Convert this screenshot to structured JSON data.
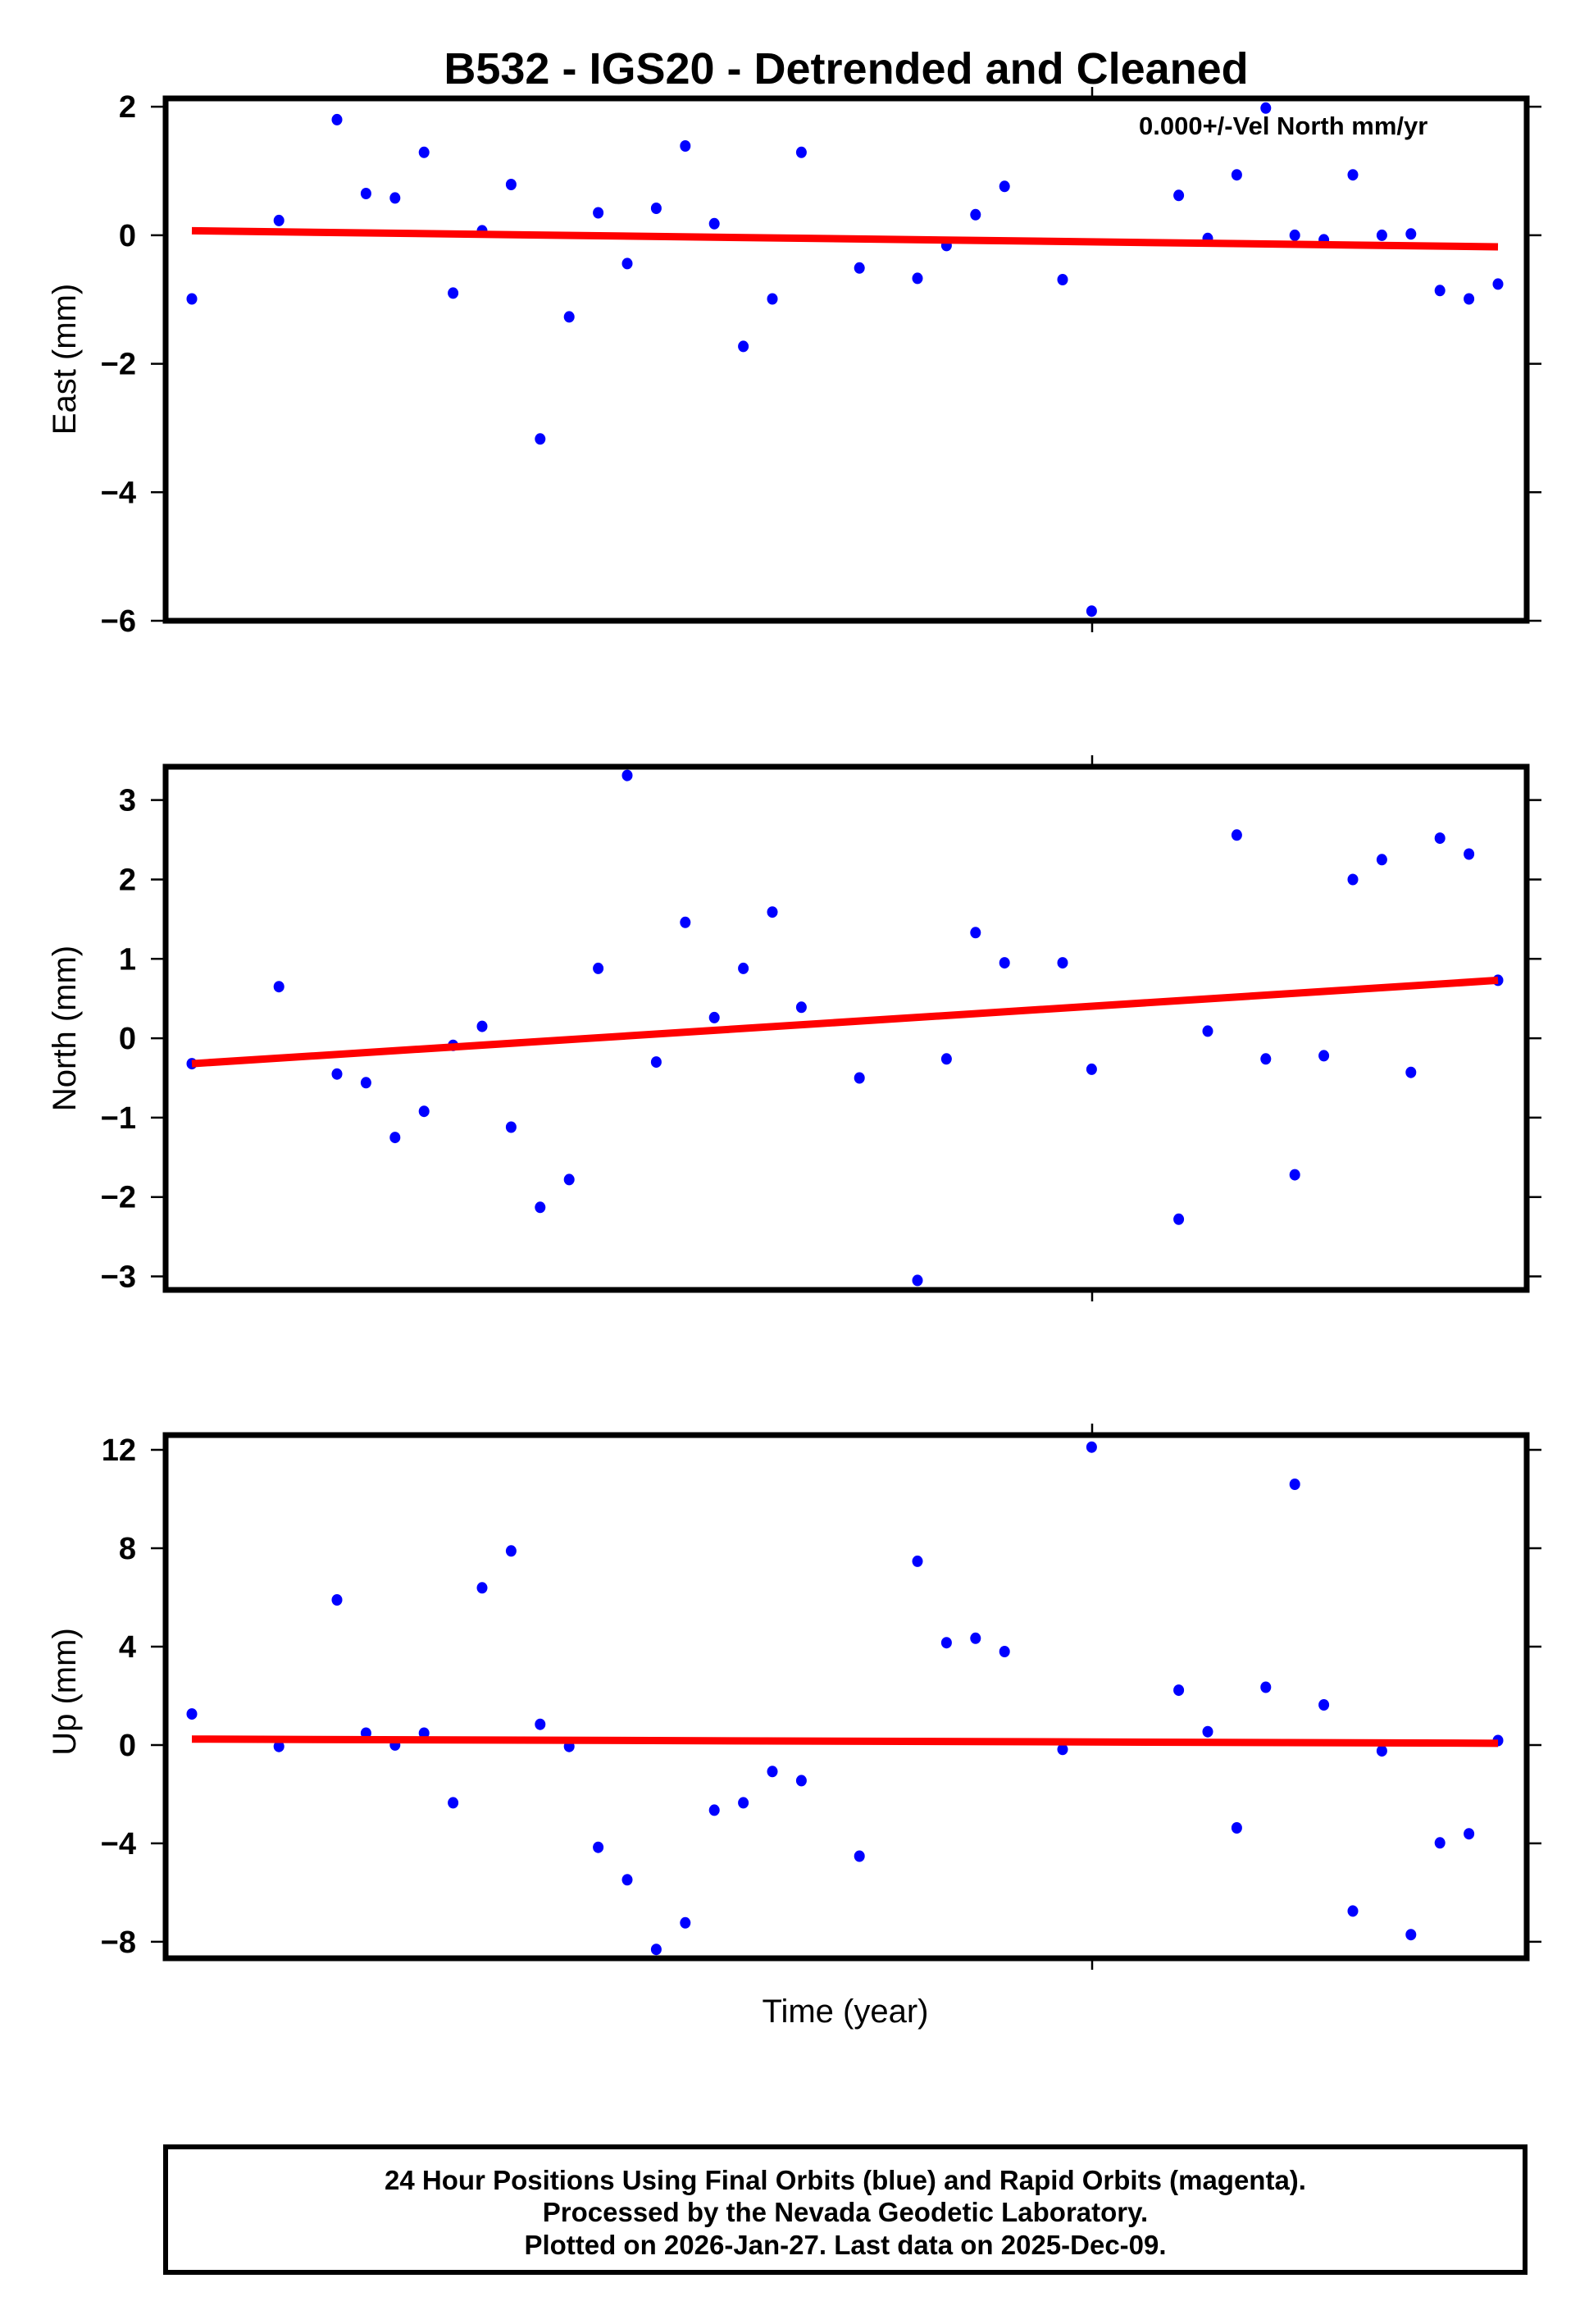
{
  "title": "B532 - IGS20 - Detrended and Cleaned",
  "velocity_annotation": "0.000+/-Vel North mm/yr",
  "xlabel": "Time (year)",
  "footer": {
    "line1": "24 Hour Positions Using Final Orbits (blue) and Rapid Orbits (magenta).",
    "line2": "Processed by the Nevada Geodetic Laboratory.",
    "line3": "Plotted on 2026-Jan-27. Last data on 2025-Dec-09."
  },
  "colors": {
    "final_orbits": "#0000ff",
    "rapid_orbits": "#ff00ff",
    "trend": "#ff0000",
    "frame": "#000000"
  },
  "chart_data": [
    {
      "type": "scatter",
      "name": "East",
      "title": "B532 - IGS20 - Detrended and Cleaned",
      "xlabel": "Time (year)",
      "ylabel": "East (mm)",
      "ylim": [
        -6,
        2.13
      ],
      "yticks": [
        2,
        0,
        -2,
        -4,
        -6
      ],
      "ytick_labels": [
        "2",
        "0",
        "−2",
        "−4",
        "−6"
      ],
      "grid": false,
      "annotation": "0.000+/-Vel North mm/yr",
      "x_index": [
        0,
        3,
        5,
        6,
        7,
        8,
        9,
        10,
        11,
        12,
        13,
        14,
        15,
        16,
        17,
        18,
        19,
        20,
        21,
        23,
        25,
        26,
        27,
        28,
        30,
        31,
        34,
        35,
        36,
        37,
        38,
        39,
        40,
        41,
        42,
        43,
        44,
        45
      ],
      "values": [
        -0.99,
        0.23,
        1.8,
        0.65,
        0.58,
        1.29,
        -0.9,
        0.07,
        0.79,
        -3.17,
        -1.27,
        0.35,
        -0.44,
        0.42,
        1.39,
        0.18,
        -1.73,
        -0.99,
        1.29,
        -0.51,
        -0.67,
        -0.16,
        0.32,
        0.76,
        -0.69,
        -5.85,
        0.62,
        -0.05,
        0.94,
        1.98,
        0.0,
        -0.07,
        0.94,
        0.0,
        0.02,
        -0.86,
        -0.99,
        -0.76
      ],
      "trend": {
        "start": 0.07,
        "end": -0.18
      }
    },
    {
      "type": "scatter",
      "name": "North",
      "xlabel": "Time (year)",
      "ylabel": "North (mm)",
      "ylim": [
        -3.17,
        3.42
      ],
      "yticks": [
        3,
        2,
        1,
        0,
        -1,
        -2,
        -3
      ],
      "ytick_labels": [
        "3",
        "2",
        "1",
        "0",
        "−1",
        "−2",
        "−3"
      ],
      "grid": false,
      "x_index": [
        0,
        3,
        5,
        6,
        7,
        8,
        9,
        10,
        11,
        12,
        13,
        14,
        15,
        16,
        17,
        18,
        19,
        20,
        21,
        23,
        25,
        26,
        27,
        28,
        30,
        31,
        34,
        35,
        36,
        37,
        38,
        39,
        40,
        41,
        42,
        43,
        44,
        45
      ],
      "values": [
        -0.32,
        0.65,
        -0.45,
        -0.56,
        -1.25,
        -0.92,
        -0.09,
        0.15,
        -1.12,
        -2.13,
        -1.78,
        0.88,
        3.31,
        -0.3,
        1.46,
        0.26,
        0.88,
        1.59,
        0.39,
        -0.5,
        -3.05,
        -0.26,
        1.33,
        0.95,
        0.95,
        -0.39,
        -2.28,
        0.09,
        2.56,
        -0.26,
        -1.72,
        -0.22,
        2.0,
        2.25,
        -0.43,
        2.52,
        2.32,
        0.73
      ],
      "trend": {
        "start": -0.32,
        "end": 0.73
      }
    },
    {
      "type": "scatter",
      "name": "Up",
      "xlabel": "Time (year)",
      "ylabel": "Up (mm)",
      "ylim": [
        -8.67,
        12.6
      ],
      "yticks": [
        12,
        8,
        4,
        0,
        -4,
        -8
      ],
      "ytick_labels": [
        "12",
        "8",
        "4",
        "0",
        "−4",
        "−8"
      ],
      "grid": false,
      "x_index": [
        0,
        3,
        5,
        6,
        7,
        8,
        9,
        10,
        11,
        12,
        13,
        14,
        15,
        16,
        17,
        18,
        19,
        20,
        21,
        23,
        25,
        26,
        27,
        28,
        30,
        31,
        34,
        35,
        36,
        37,
        38,
        39,
        40,
        41,
        42,
        43,
        44,
        45
      ],
      "values": [
        1.26,
        -0.06,
        5.9,
        0.48,
        0.0,
        0.48,
        -2.35,
        6.39,
        7.89,
        0.84,
        -0.06,
        -4.16,
        -5.48,
        -8.31,
        -7.23,
        -2.65,
        -2.35,
        -1.08,
        -1.45,
        -4.52,
        7.47,
        4.16,
        4.34,
        3.8,
        -0.18,
        12.11,
        2.23,
        0.54,
        -3.37,
        2.35,
        10.6,
        1.63,
        -6.75,
        -0.24,
        -7.71,
        -3.98,
        -3.61,
        0.18
      ],
      "trend": {
        "start": 0.24,
        "end": 0.07
      }
    }
  ]
}
